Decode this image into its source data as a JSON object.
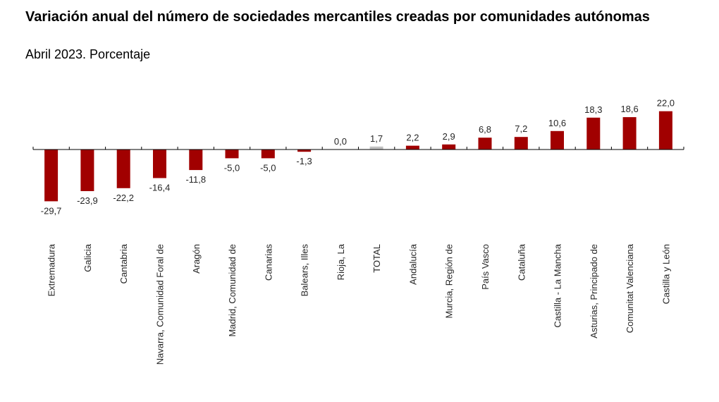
{
  "chart_data": {
    "type": "bar",
    "title": "Variación anual del número de sociedades mercantiles creadas por comunidades autónomas",
    "subtitle": "Abril 2023. Porcentaje",
    "xlabel": "",
    "ylabel": "",
    "ylim": [
      -29.7,
      22.0
    ],
    "grid": false,
    "legend": "none",
    "categories": [
      "Extremadura",
      "Galicia",
      "Cantabria",
      "Navarra, Comunidad Foral de",
      "Aragón",
      "Madrid, Comunidad de",
      "Canarias",
      "Balears, Illes",
      "Rioja, La",
      "TOTAL",
      "Andalucía",
      "Murcia, Región de",
      "País Vasco",
      "Cataluña",
      "Castilla - La Mancha",
      "Asturias, Principado de",
      "Comunitat Valenciana",
      "Castilla y León"
    ],
    "values": [
      -29.7,
      -23.9,
      -22.2,
      -16.4,
      -11.8,
      -5.0,
      -5.0,
      -1.3,
      0.0,
      1.7,
      2.2,
      2.9,
      6.8,
      7.2,
      10.6,
      18.3,
      18.6,
      22.0
    ],
    "value_labels": [
      "-29,7",
      "-23,9",
      "-22,2",
      "-16,4",
      "-11,8",
      "-5,0",
      "-5,0",
      "-1,3",
      "0,0",
      "1,7",
      "2,2",
      "2,9",
      "6,8",
      "7,2",
      "10,6",
      "18,3",
      "18,6",
      "22,0"
    ],
    "highlight_category": "TOTAL",
    "colors": {
      "bar": "#a10000",
      "highlight": "#c0c0c0",
      "axis": "#000000"
    }
  }
}
